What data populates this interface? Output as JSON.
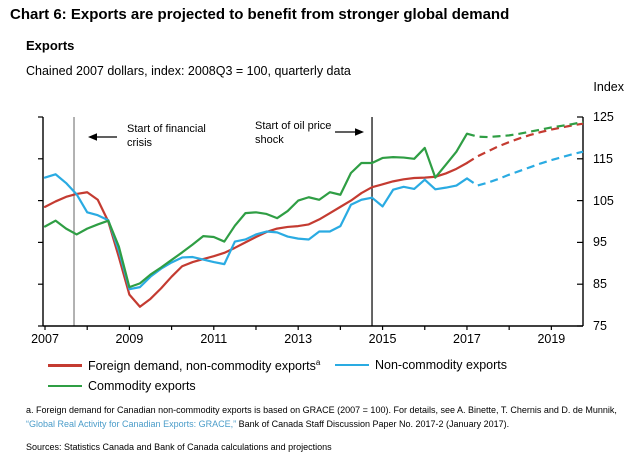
{
  "header": {
    "title": "Chart 6: Exports are projected to benefit from stronger global demand",
    "subtitle": "Exports",
    "units_line": "Chained 2007 dollars, index: 2008Q3 = 100, quarterly data"
  },
  "chart_data": {
    "type": "line",
    "title": "Exports",
    "subtitle": "Chained 2007 dollars, index: 2008Q3 = 100, quarterly data",
    "ylabel": "Index",
    "ylim": [
      75,
      125
    ],
    "y_ticks": [
      75,
      85,
      95,
      105,
      115,
      125
    ],
    "x_years": [
      2007,
      2008,
      2009,
      2010,
      2011,
      2012,
      2013,
      2014,
      2015,
      2016,
      2017,
      2018,
      2019
    ],
    "x_year_labels": [
      "2007",
      "2009",
      "2011",
      "2013",
      "2015",
      "2017",
      "2019"
    ],
    "x_range": "2007Q1 to 2019Q4, quarterly",
    "grid": "off",
    "legend_position": "bottom",
    "projection_start_index": 40,
    "projection_note": "dashed lines are projections from 2017Q2 onward",
    "series": [
      {
        "name": "Foreign demand, non-commodity exports",
        "sup": "a",
        "color": "#c43b31",
        "values": [
          103.5,
          104.8,
          105.9,
          106.6,
          107.0,
          105.2,
          100.0,
          91.5,
          82.5,
          79.6,
          81.5,
          84.0,
          86.8,
          89.3,
          90.3,
          91.0,
          91.7,
          92.5,
          93.7,
          95.0,
          96.3,
          97.5,
          98.3,
          98.7,
          98.9,
          99.3,
          100.5,
          102.0,
          103.5,
          105.0,
          106.8,
          108.2,
          108.9,
          109.6,
          110.1,
          110.4,
          110.5,
          110.7,
          111.5,
          112.6,
          114.0,
          115.6,
          116.8,
          118.0,
          119.0,
          119.9,
          120.7,
          121.4,
          122.0,
          122.5,
          123.0,
          123.4
        ]
      },
      {
        "name": "Non-commodity exports",
        "sup": "",
        "color": "#2aabe2",
        "values": [
          110.5,
          111.3,
          109.2,
          106.5,
          102.2,
          101.5,
          100.3,
          93.0,
          83.8,
          84.3,
          86.8,
          88.7,
          90.2,
          91.4,
          91.5,
          90.9,
          90.3,
          89.8,
          95.2,
          95.7,
          96.9,
          97.6,
          97.4,
          96.4,
          95.9,
          95.7,
          97.6,
          97.6,
          98.9,
          104.0,
          105.2,
          105.7,
          103.6,
          107.6,
          108.3,
          107.8,
          110.0,
          107.7,
          108.1,
          108.6,
          110.3,
          108.6,
          109.3,
          110.2,
          111.2,
          112.1,
          113.0,
          113.9,
          114.7,
          115.4,
          116.1,
          116.7
        ]
      },
      {
        "name": "Commodity exports",
        "sup": "",
        "color": "#2f9e44",
        "values": [
          98.8,
          100.2,
          98.3,
          96.9,
          98.3,
          99.3,
          100.2,
          94.0,
          84.3,
          85.2,
          87.3,
          89.0,
          90.8,
          92.6,
          94.5,
          96.5,
          96.3,
          95.2,
          99.0,
          102.0,
          102.2,
          101.8,
          100.8,
          102.5,
          105.0,
          105.8,
          105.2,
          107.0,
          106.4,
          111.6,
          114.0,
          114.0,
          115.2,
          115.4,
          115.3,
          115.0,
          117.6,
          110.5,
          113.6,
          116.7,
          121.0,
          120.3,
          120.2,
          120.4,
          120.6,
          121.0,
          121.5,
          122.0,
          122.5,
          122.9,
          123.3,
          123.8
        ]
      }
    ],
    "annotations": [
      {
        "text": "Start of financial crisis",
        "marker_index": 2.75,
        "marker_color": "#7f7f7f",
        "arrow": "left"
      },
      {
        "text": "Start of oil price shock",
        "marker_index": 31,
        "marker_color": "#000000",
        "arrow": "right"
      }
    ],
    "axis_color": "#000000"
  },
  "footer": {
    "footnote_pre": "a. Foreign demand for Canadian non-commodity exports is based on GRACE (2007 = 100). For details, see A. Binette, T. Chernis and D. de Munnik, ",
    "footnote_link": "“Global Real Activity for Canadian Exports: GRACE,”",
    "footnote_post": " Bank of Canada Staff Discussion Paper No. 2017-2 (January 2017).",
    "link_color": "#4a9cc9",
    "sources": "Sources: Statistics Canada and Bank of Canada calculations and projections"
  }
}
